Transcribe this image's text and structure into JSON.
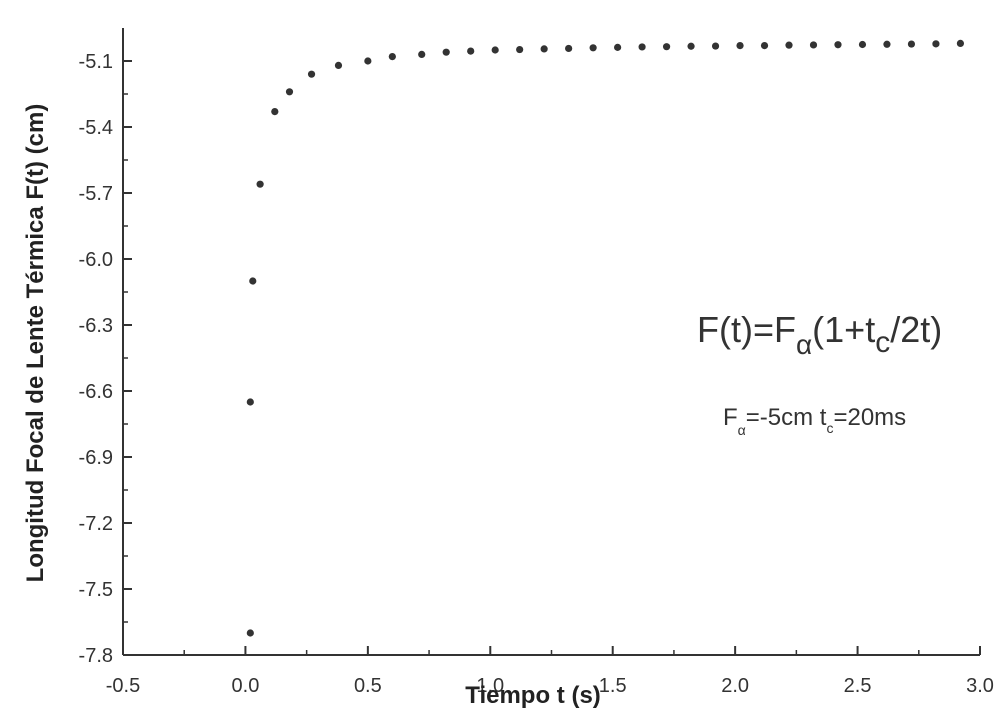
{
  "chart_data": {
    "type": "scatter",
    "title": "",
    "xlabel": "Tiempo  t (s)",
    "ylabel": "Longitud  Focal de Lente Térmica F(t) (cm)",
    "xlim": [
      -0.5,
      3.0
    ],
    "ylim": [
      -7.8,
      -4.95
    ],
    "xticks": [
      -0.5,
      0.0,
      0.5,
      1.0,
      1.5,
      2.0,
      2.5,
      3.0
    ],
    "xtick_labels": [
      "-0.5",
      "0.0",
      "0.5",
      "1.0",
      "1.5",
      "2.0",
      "2.5",
      "3.0"
    ],
    "yticks": [
      -7.8,
      -7.5,
      -7.2,
      -6.9,
      -6.6,
      -6.3,
      -6.0,
      -5.7,
      -5.4,
      -5.1
    ],
    "ytick_labels": [
      "-7.8",
      "-7.5",
      "-7.2",
      "-6.9",
      "-6.6",
      "-6.3",
      "-6.0",
      "-5.7",
      "-5.4",
      "-5.1"
    ],
    "grid": false,
    "marker_color": "#333333",
    "series": [
      {
        "points": [
          [
            0.02,
            -7.7
          ],
          [
            0.02,
            -6.65
          ],
          [
            0.03,
            -6.1
          ],
          [
            0.06,
            -5.66
          ],
          [
            0.12,
            -5.33
          ],
          [
            0.18,
            -5.24
          ],
          [
            0.27,
            -5.16
          ],
          [
            0.38,
            -5.12
          ],
          [
            0.5,
            -5.1
          ],
          [
            0.6,
            -5.08
          ],
          [
            0.72,
            -5.07
          ],
          [
            0.82,
            -5.06
          ],
          [
            0.92,
            -5.055
          ],
          [
            1.02,
            -5.05
          ],
          [
            1.12,
            -5.048
          ],
          [
            1.22,
            -5.045
          ],
          [
            1.32,
            -5.043
          ],
          [
            1.42,
            -5.04
          ],
          [
            1.52,
            -5.038
          ],
          [
            1.62,
            -5.036
          ],
          [
            1.72,
            -5.035
          ],
          [
            1.82,
            -5.033
          ],
          [
            1.92,
            -5.032
          ],
          [
            2.02,
            -5.03
          ],
          [
            2.12,
            -5.03
          ],
          [
            2.22,
            -5.028
          ],
          [
            2.32,
            -5.027
          ],
          [
            2.42,
            -5.026
          ],
          [
            2.52,
            -5.025
          ],
          [
            2.62,
            -5.024
          ],
          [
            2.72,
            -5.023
          ],
          [
            2.82,
            -5.022
          ],
          [
            2.92,
            -5.02
          ]
        ]
      }
    ],
    "annotations": {
      "formula": {
        "lhs": "F(t)=F",
        "sub1": "α",
        "rest1": "(1+t",
        "sub2": "c",
        "rest2": "/2t)"
      },
      "params": {
        "f": "F",
        "f_sub": "α",
        "f_val": "=-5cm  t",
        "t_sub": "c",
        "t_val": "=20ms"
      }
    }
  }
}
